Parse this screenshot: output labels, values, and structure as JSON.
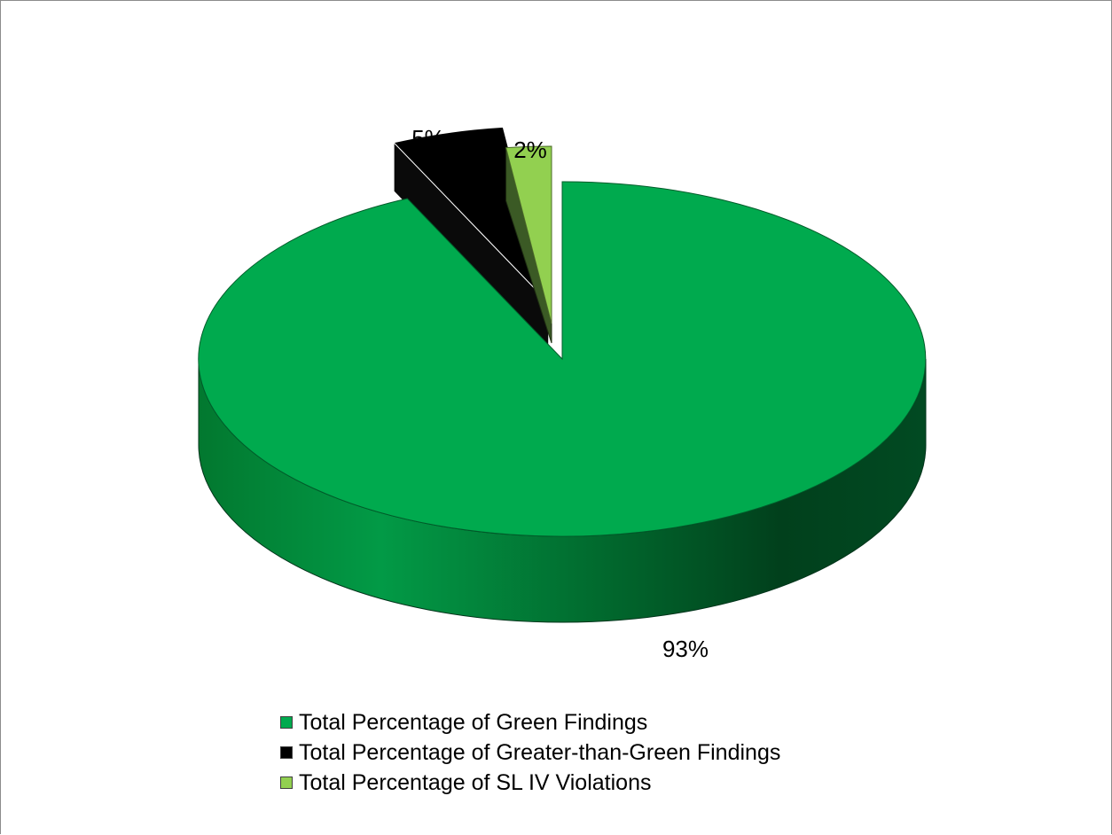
{
  "chart_data": {
    "type": "pie",
    "title": "",
    "style": "3d-exploded",
    "legend_position": "bottom",
    "slices": [
      {
        "name": "Total Percentage of Green Findings",
        "value": 93,
        "label": "93%",
        "color": "#00AA4E"
      },
      {
        "name": "Total Percentage of Greater-than-Green Findings",
        "value": 5,
        "label": "5%",
        "color": "#000000"
      },
      {
        "name": "Total Percentage of SL IV Violations",
        "value": 2,
        "label": "2%",
        "color": "#92D050"
      }
    ]
  }
}
